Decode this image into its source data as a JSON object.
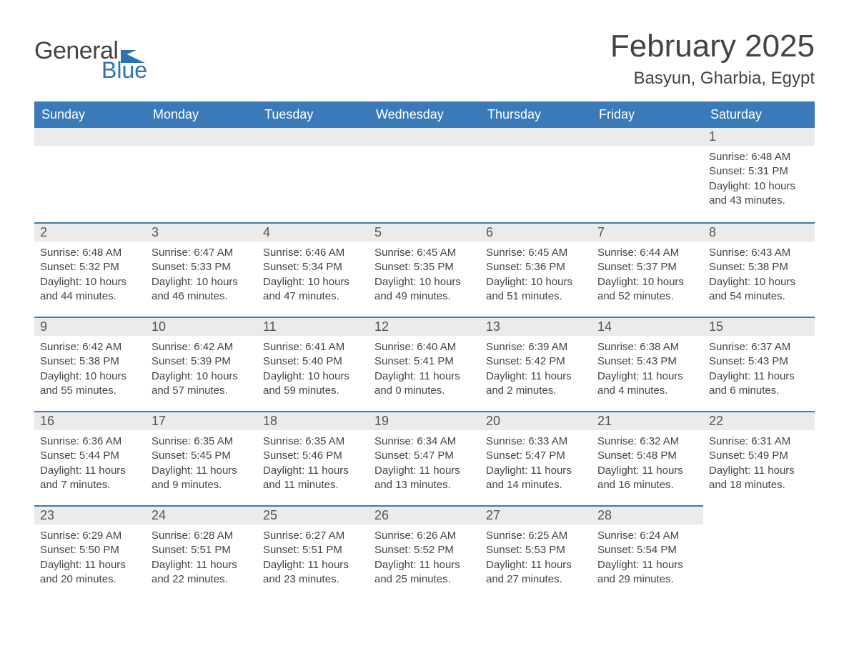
{
  "logo": {
    "general": "General",
    "blue": "Blue",
    "flag_color": "#2e72b6"
  },
  "title": "February 2025",
  "location": "Basyun, Gharbia, Egypt",
  "colors": {
    "header_bg": "#3a7ab8",
    "header_text": "#ffffff",
    "daynum_bg": "#ebebeb",
    "daynum_border": "#3a7ab8",
    "body_bg": "#ffffff",
    "text": "#444444",
    "logo_blue": "#2e72b6"
  },
  "day_headers": [
    "Sunday",
    "Monday",
    "Tuesday",
    "Wednesday",
    "Thursday",
    "Friday",
    "Saturday"
  ],
  "weeks": [
    [
      {
        "day": "",
        "lines": []
      },
      {
        "day": "",
        "lines": []
      },
      {
        "day": "",
        "lines": []
      },
      {
        "day": "",
        "lines": []
      },
      {
        "day": "",
        "lines": []
      },
      {
        "day": "",
        "lines": []
      },
      {
        "day": "1",
        "lines": [
          "Sunrise: 6:48 AM",
          "Sunset: 5:31 PM",
          "Daylight: 10 hours and 43 minutes."
        ]
      }
    ],
    [
      {
        "day": "2",
        "lines": [
          "Sunrise: 6:48 AM",
          "Sunset: 5:32 PM",
          "Daylight: 10 hours and 44 minutes."
        ]
      },
      {
        "day": "3",
        "lines": [
          "Sunrise: 6:47 AM",
          "Sunset: 5:33 PM",
          "Daylight: 10 hours and 46 minutes."
        ]
      },
      {
        "day": "4",
        "lines": [
          "Sunrise: 6:46 AM",
          "Sunset: 5:34 PM",
          "Daylight: 10 hours and 47 minutes."
        ]
      },
      {
        "day": "5",
        "lines": [
          "Sunrise: 6:45 AM",
          "Sunset: 5:35 PM",
          "Daylight: 10 hours and 49 minutes."
        ]
      },
      {
        "day": "6",
        "lines": [
          "Sunrise: 6:45 AM",
          "Sunset: 5:36 PM",
          "Daylight: 10 hours and 51 minutes."
        ]
      },
      {
        "day": "7",
        "lines": [
          "Sunrise: 6:44 AM",
          "Sunset: 5:37 PM",
          "Daylight: 10 hours and 52 minutes."
        ]
      },
      {
        "day": "8",
        "lines": [
          "Sunrise: 6:43 AM",
          "Sunset: 5:38 PM",
          "Daylight: 10 hours and 54 minutes."
        ]
      }
    ],
    [
      {
        "day": "9",
        "lines": [
          "Sunrise: 6:42 AM",
          "Sunset: 5:38 PM",
          "Daylight: 10 hours and 55 minutes."
        ]
      },
      {
        "day": "10",
        "lines": [
          "Sunrise: 6:42 AM",
          "Sunset: 5:39 PM",
          "Daylight: 10 hours and 57 minutes."
        ]
      },
      {
        "day": "11",
        "lines": [
          "Sunrise: 6:41 AM",
          "Sunset: 5:40 PM",
          "Daylight: 10 hours and 59 minutes."
        ]
      },
      {
        "day": "12",
        "lines": [
          "Sunrise: 6:40 AM",
          "Sunset: 5:41 PM",
          "Daylight: 11 hours and 0 minutes."
        ]
      },
      {
        "day": "13",
        "lines": [
          "Sunrise: 6:39 AM",
          "Sunset: 5:42 PM",
          "Daylight: 11 hours and 2 minutes."
        ]
      },
      {
        "day": "14",
        "lines": [
          "Sunrise: 6:38 AM",
          "Sunset: 5:43 PM",
          "Daylight: 11 hours and 4 minutes."
        ]
      },
      {
        "day": "15",
        "lines": [
          "Sunrise: 6:37 AM",
          "Sunset: 5:43 PM",
          "Daylight: 11 hours and 6 minutes."
        ]
      }
    ],
    [
      {
        "day": "16",
        "lines": [
          "Sunrise: 6:36 AM",
          "Sunset: 5:44 PM",
          "Daylight: 11 hours and 7 minutes."
        ]
      },
      {
        "day": "17",
        "lines": [
          "Sunrise: 6:35 AM",
          "Sunset: 5:45 PM",
          "Daylight: 11 hours and 9 minutes."
        ]
      },
      {
        "day": "18",
        "lines": [
          "Sunrise: 6:35 AM",
          "Sunset: 5:46 PM",
          "Daylight: 11 hours and 11 minutes."
        ]
      },
      {
        "day": "19",
        "lines": [
          "Sunrise: 6:34 AM",
          "Sunset: 5:47 PM",
          "Daylight: 11 hours and 13 minutes."
        ]
      },
      {
        "day": "20",
        "lines": [
          "Sunrise: 6:33 AM",
          "Sunset: 5:47 PM",
          "Daylight: 11 hours and 14 minutes."
        ]
      },
      {
        "day": "21",
        "lines": [
          "Sunrise: 6:32 AM",
          "Sunset: 5:48 PM",
          "Daylight: 11 hours and 16 minutes."
        ]
      },
      {
        "day": "22",
        "lines": [
          "Sunrise: 6:31 AM",
          "Sunset: 5:49 PM",
          "Daylight: 11 hours and 18 minutes."
        ]
      }
    ],
    [
      {
        "day": "23",
        "lines": [
          "Sunrise: 6:29 AM",
          "Sunset: 5:50 PM",
          "Daylight: 11 hours and 20 minutes."
        ]
      },
      {
        "day": "24",
        "lines": [
          "Sunrise: 6:28 AM",
          "Sunset: 5:51 PM",
          "Daylight: 11 hours and 22 minutes."
        ]
      },
      {
        "day": "25",
        "lines": [
          "Sunrise: 6:27 AM",
          "Sunset: 5:51 PM",
          "Daylight: 11 hours and 23 minutes."
        ]
      },
      {
        "day": "26",
        "lines": [
          "Sunrise: 6:26 AM",
          "Sunset: 5:52 PM",
          "Daylight: 11 hours and 25 minutes."
        ]
      },
      {
        "day": "27",
        "lines": [
          "Sunrise: 6:25 AM",
          "Sunset: 5:53 PM",
          "Daylight: 11 hours and 27 minutes."
        ]
      },
      {
        "day": "28",
        "lines": [
          "Sunrise: 6:24 AM",
          "Sunset: 5:54 PM",
          "Daylight: 11 hours and 29 minutes."
        ]
      },
      {
        "day": "",
        "lines": []
      }
    ]
  ]
}
